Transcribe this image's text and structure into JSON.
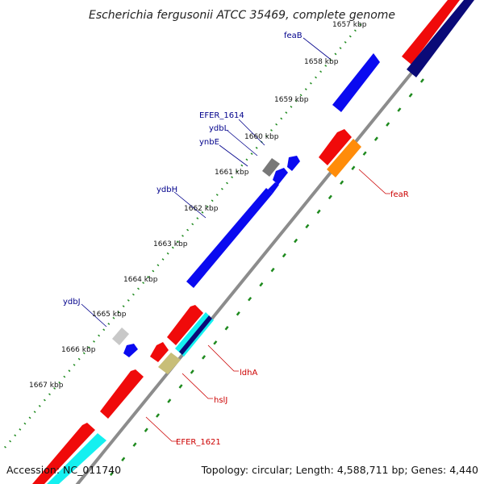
{
  "title": "Escherichia fergusonii ATCC 35469, complete genome",
  "footer": {
    "accession": "Accession: NC_011740",
    "topology": "Topology: circular; Length: 4,588,711 bp; Genes: 4,440"
  },
  "colors": {
    "backbone": "#8c8c8c",
    "tick_dots": "#1e8a1e",
    "label_forward": "#00008b",
    "label_reverse": "#cc0000",
    "cds_blue": "#0a0af0",
    "cds_red": "#f00a0a",
    "cds_navy": "#0a0a78",
    "cds_orange": "#ff8c0a",
    "cds_gray": "#787878",
    "cds_lightgray": "#c8c8c8",
    "cds_cyan": "#14f0f0",
    "cds_olive": "#c8be78"
  },
  "ticks": [
    "1657 kbp",
    "1658 kbp",
    "1659 kbp",
    "1660 kbp",
    "1661 kbp",
    "1662 kbp",
    "1663 kbp",
    "1664 kbp",
    "1665 kbp",
    "1666 kbp",
    "1667 kbp"
  ],
  "gene_labels_forward": [
    "feaB",
    "EFER_1614",
    "ydbL",
    "ynbE",
    "ydbH",
    "ydbJ"
  ],
  "gene_labels_reverse": [
    "feaR",
    "ldhA",
    "hslJ",
    "EFER_1621"
  ]
}
